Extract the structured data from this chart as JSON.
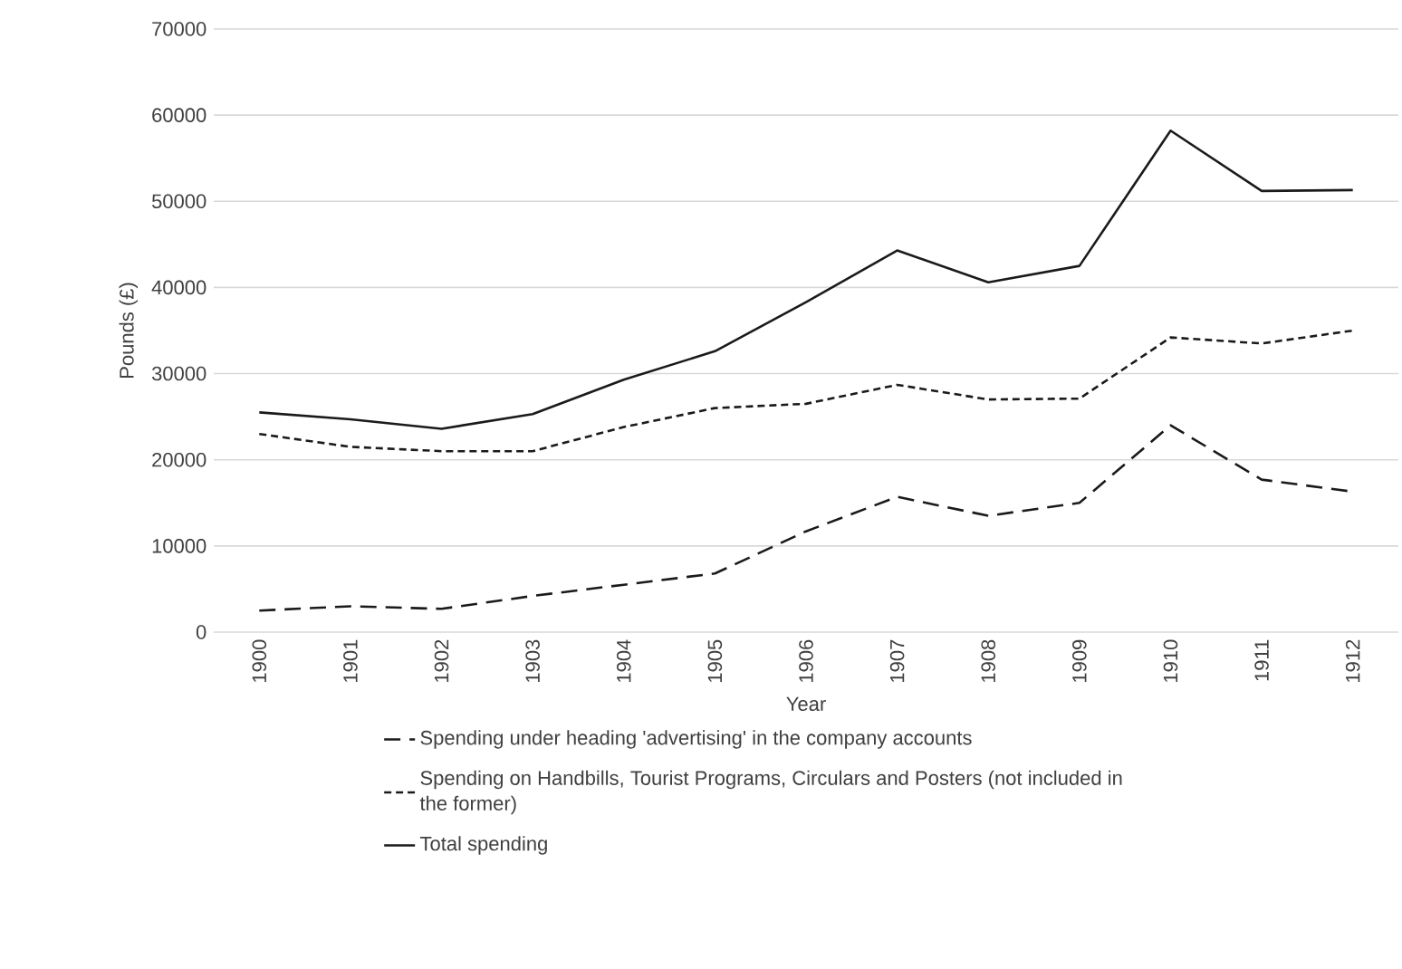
{
  "chart_data": {
    "type": "line",
    "xlabel": "Year",
    "ylabel": "Pounds (£)",
    "categories": [
      "1900",
      "1901",
      "1902",
      "1903",
      "1904",
      "1905",
      "1906",
      "1907",
      "1908",
      "1909",
      "1910",
      "1911",
      "1912"
    ],
    "ylim": [
      0,
      70000
    ],
    "yticks": [
      0,
      10000,
      20000,
      30000,
      40000,
      50000,
      60000,
      70000
    ],
    "grid": "y",
    "legend": "bottom",
    "marker": "none",
    "series": [
      {
        "name": "Spending under heading 'advertising' in the company accounts",
        "color": "#1a1a1a",
        "line_style": "longdashed",
        "values": [
          2500,
          3000,
          2700,
          4200,
          5500,
          6800,
          11700,
          15700,
          13500,
          15000,
          24000,
          17700,
          16300
        ]
      },
      {
        "name": "Spending on Handbills, Tourist Programs, Circulars and Posters (not included in the former)",
        "color": "#1a1a1a",
        "line_style": "dashed",
        "values": [
          23000,
          21500,
          21000,
          21000,
          23800,
          26000,
          26500,
          28700,
          27000,
          27100,
          34200,
          33500,
          35000
        ]
      },
      {
        "name": "Total spending",
        "color": "#1a1a1a",
        "line_style": "solid",
        "values": [
          25500,
          24700,
          23600,
          25300,
          29300,
          32600,
          38300,
          44300,
          40600,
          42500,
          58200,
          51200,
          51300
        ]
      }
    ]
  }
}
